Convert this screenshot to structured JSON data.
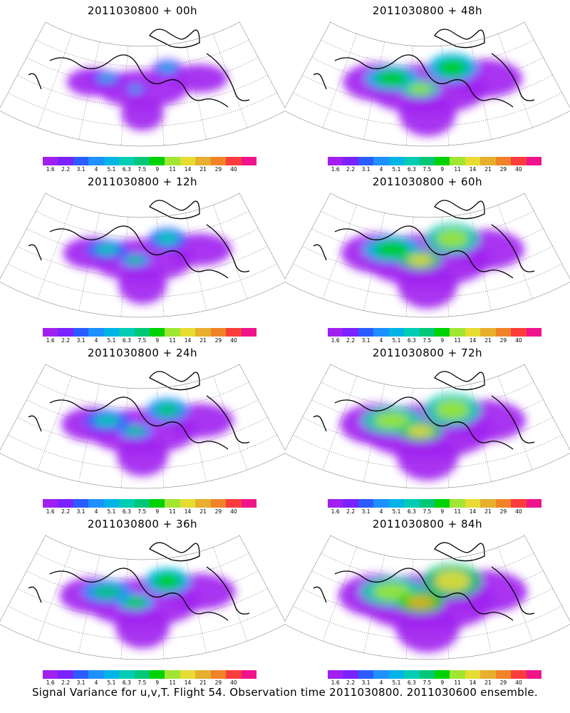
{
  "panels": [
    {
      "title": "2011030800 + 00h",
      "intensity": 0.25
    },
    {
      "title": "2011030800 + 12h",
      "intensity": 0.45
    },
    {
      "title": "2011030800 + 24h",
      "intensity": 0.55
    },
    {
      "title": "2011030800 + 36h",
      "intensity": 0.65
    },
    {
      "title": "2011030800 + 48h",
      "intensity": 0.75
    },
    {
      "title": "2011030800 + 60h",
      "intensity": 0.85
    },
    {
      "title": "2011030800 + 72h",
      "intensity": 0.92
    },
    {
      "title": "2011030800 + 84h",
      "intensity": 1.0
    }
  ],
  "colorbar": {
    "levels": [
      "1.6",
      "2.2",
      "3.1",
      "4",
      "5.1",
      "6.3",
      "7.5",
      "9",
      "11",
      "14",
      "21",
      "29",
      "40"
    ],
    "colors": [
      "#a020f0",
      "#7a22ff",
      "#2b5cff",
      "#1e90ff",
      "#00b4e6",
      "#00cdb4",
      "#00c878",
      "#00d200",
      "#a0e632",
      "#e6dc32",
      "#e6af2d",
      "#f08228",
      "#fa3c3c",
      "#f0148c"
    ]
  },
  "caption": "Signal Variance for u,v,T. Flight 54. Observation time 2011030800. 2011030600 ensemble."
}
